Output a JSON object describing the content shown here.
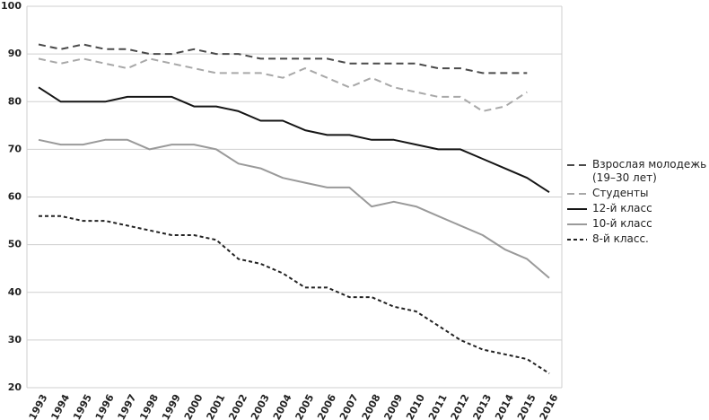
{
  "chart_data": {
    "type": "line",
    "categories": [
      "1993",
      "1994",
      "1995",
      "1996",
      "1997",
      "1998",
      "1999",
      "2000",
      "2001",
      "2002",
      "2003",
      "2004",
      "2005",
      "2006",
      "2007",
      "2008",
      "2009",
      "2010",
      "2011",
      "2012",
      "2013",
      "2014",
      "2015",
      "2016"
    ],
    "series": [
      {
        "name": "Взрослая молодежь (19–30 лет)",
        "color": "#4a4a4a",
        "style": "dashed",
        "values": [
          92,
          91,
          92,
          91,
          91,
          90,
          90,
          91,
          90,
          90,
          89,
          89,
          89,
          89,
          88,
          88,
          88,
          88,
          87,
          87,
          86,
          86,
          86,
          null
        ]
      },
      {
        "name": "Студенты",
        "color": "#a8a8a8",
        "style": "dashed",
        "values": [
          89,
          88,
          89,
          88,
          87,
          89,
          88,
          87,
          86,
          86,
          86,
          85,
          87,
          85,
          83,
          85,
          83,
          82,
          81,
          81,
          78,
          79,
          82,
          null
        ]
      },
      {
        "name": "12-й класс",
        "color": "#151515",
        "style": "solid",
        "values": [
          83,
          80,
          80,
          80,
          81,
          81,
          81,
          79,
          79,
          78,
          76,
          76,
          74,
          73,
          73,
          72,
          72,
          71,
          70,
          70,
          68,
          66,
          64,
          61
        ]
      },
      {
        "name": "10-й класс",
        "color": "#9a9a9a",
        "style": "solid",
        "values": [
          72,
          71,
          71,
          72,
          72,
          70,
          71,
          71,
          70,
          67,
          66,
          64,
          63,
          62,
          62,
          58,
          59,
          58,
          56,
          54,
          52,
          49,
          47,
          43
        ]
      },
      {
        "name": "8-й класс.",
        "color": "#222222",
        "style": "dotted",
        "values": [
          56,
          56,
          55,
          55,
          54,
          53,
          52,
          52,
          51,
          47,
          46,
          44,
          41,
          41,
          39,
          39,
          37,
          36,
          33,
          30,
          28,
          27,
          26,
          23
        ]
      }
    ],
    "ylim": [
      20,
      100
    ],
    "yticks": [
      20,
      30,
      40,
      50,
      60,
      70,
      80,
      90,
      100
    ],
    "grid": true,
    "legend": "right"
  }
}
